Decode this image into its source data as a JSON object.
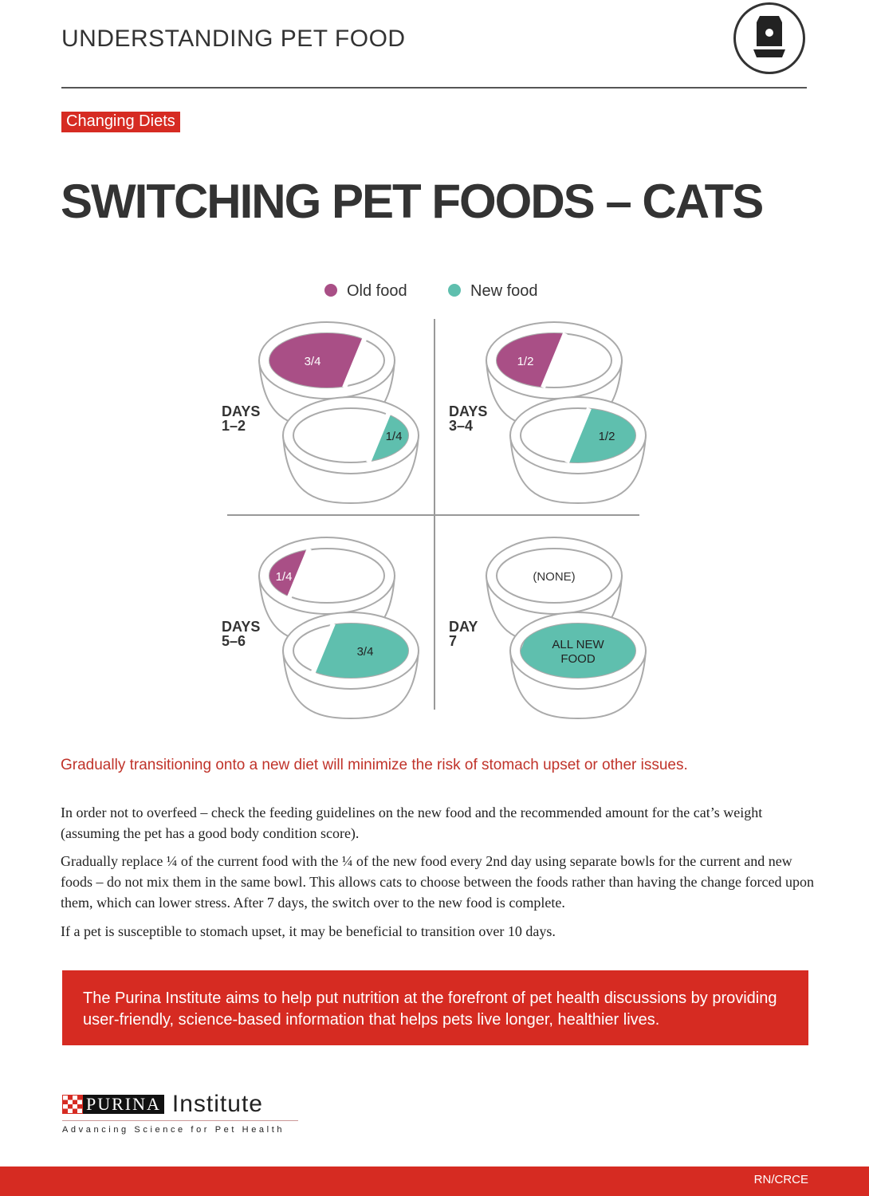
{
  "header": {
    "title": "UNDERSTANDING PET FOOD",
    "icon": "pet-food-bag-icon"
  },
  "tag": "Changing Diets",
  "title": "SWITCHING PET FOODS – CATS",
  "legend": [
    {
      "label": "Old food",
      "color": "#a94f86"
    },
    {
      "label": "New food",
      "color": "#5fbfae"
    }
  ],
  "stages": [
    {
      "label1": "DAYS",
      "label2": "1–2",
      "old_label": "3/4",
      "old_fraction": 0.75,
      "new_label": "1/4",
      "new_fraction": 0.25
    },
    {
      "label1": "DAYS",
      "label2": "3–4",
      "old_label": "1/2",
      "old_fraction": 0.5,
      "new_label": "1/2",
      "new_fraction": 0.5
    },
    {
      "label1": "DAYS",
      "label2": "5–6",
      "old_label": "1/4",
      "old_fraction": 0.25,
      "new_label": "3/4",
      "new_fraction": 0.75
    },
    {
      "label1": "DAY",
      "label2": "7",
      "old_label": "(NONE)",
      "old_fraction": 0,
      "new_label": "ALL NEW FOOD",
      "new_fraction": 1
    }
  ],
  "lead": "Gradually transitioning onto a new diet will minimize the risk of stomach upset or other issues.",
  "paragraphs": [
    "In order not to overfeed – check the feeding guidelines on the new food and the recommended amount for the cat’s weight (assuming the pet has a good body condition score).",
    "Gradually replace ¼ of the current food with the ¼ of the new food every 2nd day using separate bowls for the current and new foods – do not mix them in the same bowl. This allows cats to choose between the foods rather than having the change forced upon them, which can lower stress. After 7 days, the switch over to the new food is complete.",
    "If a pet is susceptible to stomach upset, it may be beneficial to transition over 10 days."
  ],
  "banner": "The Purina Institute aims to help put nutrition at the forefront of pet health discussions by providing user-friendly, science-based information that helps pets live longer, healthier lives.",
  "logo": {
    "brand": "PURINA",
    "name": "Institute",
    "tagline": "Advancing Science for Pet Health"
  },
  "footer": {
    "code": "RN/CRCE"
  },
  "colors": {
    "accent": "#d62b22",
    "old": "#a94f86",
    "new": "#5fbfae"
  }
}
